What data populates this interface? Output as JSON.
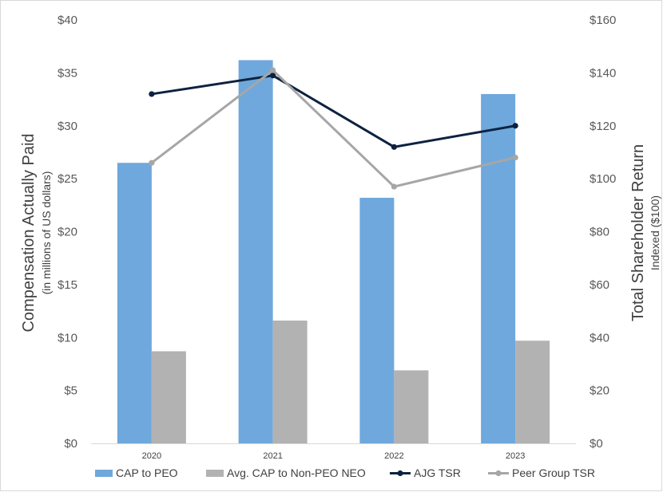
{
  "chart_data": {
    "type": "bar",
    "categories": [
      "2020",
      "2021",
      "2022",
      "2023"
    ],
    "series": [
      {
        "name": "CAP to PEO",
        "kind": "bar",
        "axis": "left",
        "color": "#6fa8dc",
        "values": [
          26.5,
          36.2,
          23.2,
          33.0
        ]
      },
      {
        "name": "Avg. CAP to Non-PEO NEO",
        "kind": "bar",
        "axis": "left",
        "color": "#b2b2b2",
        "values": [
          8.7,
          11.6,
          6.9,
          9.7
        ]
      },
      {
        "name": "AJG TSR",
        "kind": "line",
        "axis": "right",
        "color": "#0d2240",
        "values": [
          132,
          139,
          112,
          120
        ]
      },
      {
        "name": "Peer Group TSR",
        "kind": "line",
        "axis": "right",
        "color": "#a6a6a6",
        "values": [
          106,
          141,
          97,
          108
        ]
      }
    ],
    "y_left": {
      "label": "Compensation Actually Paid",
      "sublabel": "(in millions of US dollars)",
      "range": [
        0,
        40
      ],
      "ticks": [
        "$0",
        "$5",
        "$10",
        "$15",
        "$20",
        "$25",
        "$30",
        "$35",
        "$40"
      ]
    },
    "y_right": {
      "label": "Total Shareholder Return",
      "sublabel": "Indexed ($100)",
      "range": [
        0,
        160
      ],
      "ticks": [
        "$0",
        "$20",
        "$40",
        "$60",
        "$80",
        "$100",
        "$120",
        "$140",
        "$160"
      ]
    },
    "gridlines": false,
    "legend_position": "bottom"
  }
}
